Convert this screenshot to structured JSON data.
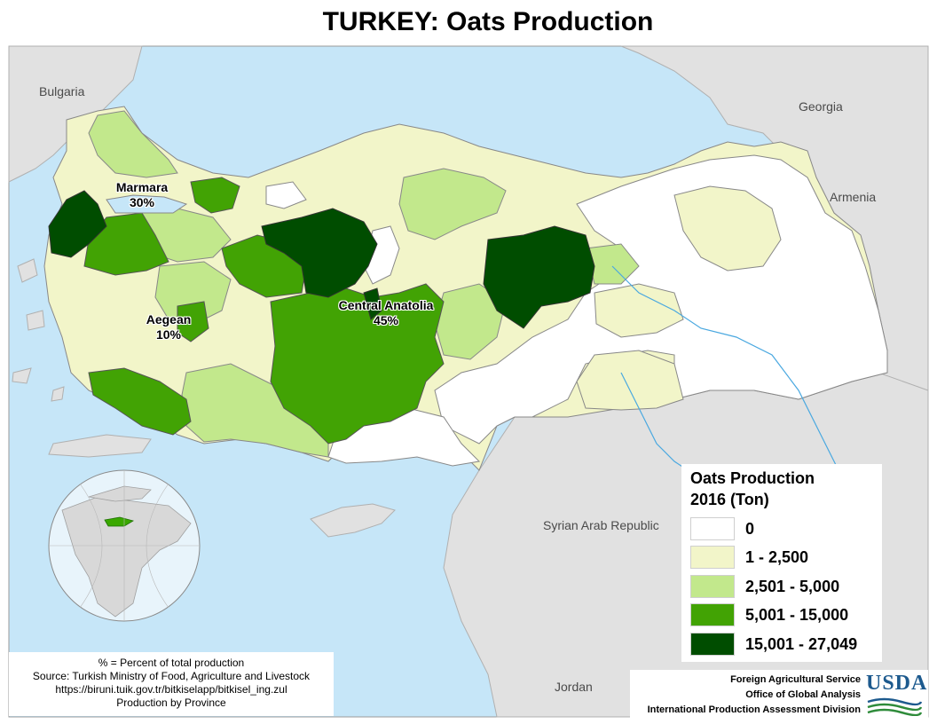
{
  "title": "TURKEY: Oats Production",
  "map_labels": {
    "bulgaria": "Bulgaria",
    "georgia": "Georgia",
    "armenia": "Armenia",
    "syria": "Syrian Arab Republic",
    "jordan": "Jordan"
  },
  "regions": {
    "marmara": {
      "name": "Marmara",
      "share": "30%"
    },
    "aegean": {
      "name": "Aegean",
      "share": "10%"
    },
    "central_anatolia": {
      "name": "Central Anatolia",
      "share": "45%"
    }
  },
  "legend": {
    "title_line1": "Oats Production",
    "title_line2": "2016 (Ton)",
    "classes": [
      {
        "label": "0",
        "color": "#ffffff"
      },
      {
        "label": "1 - 2,500",
        "color": "#f2f5c9"
      },
      {
        "label": "2,501 - 5,000",
        "color": "#c2e88c"
      },
      {
        "label": "5,001 - 15,000",
        "color": "#42a304"
      },
      {
        "label": "15,001 - 27,049",
        "color": "#004d00"
      }
    ]
  },
  "source": {
    "line1": "% = Percent of total production",
    "line2": "Source: Turkish Ministry of Food, Agriculture and Livestock",
    "line3": "https://biruni.tuik.gov.tr/bitkiselapp/bitkisel_ing.zul",
    "line4": "Production by Province"
  },
  "credits": {
    "line1": "Foreign Agricultural Service",
    "line2": "Office of Global Analysis",
    "line3": "International Production Assessment Division",
    "logo": "USDA"
  },
  "colors": {
    "sea": "#c6e6f8",
    "land_other": "#e1e1e1",
    "class_0": "#ffffff",
    "class_1": "#f2f5c9",
    "class_2": "#c2e88c",
    "class_3": "#42a304",
    "class_4": "#004d00"
  }
}
